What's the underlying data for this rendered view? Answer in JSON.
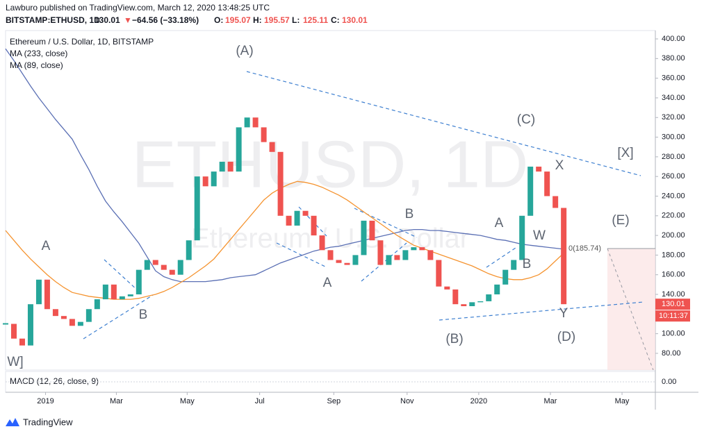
{
  "header": {
    "published": "Lawburo published on TradingView.com, March 12, 2020 13:48:25 UTC",
    "symbol": "BITSTAMP:ETHUSD, 1D",
    "last": "130.01",
    "arrow": "▼",
    "change": "−64.56 (−33.18%)",
    "ohlc": [
      {
        "key": "O:",
        "val": "195.07"
      },
      {
        "key": "H:",
        "val": "195.57"
      },
      {
        "key": "L:",
        "val": "125.11"
      },
      {
        "key": "C:",
        "val": "130.01"
      }
    ]
  },
  "footer": {
    "brand": "TradingView"
  },
  "chart_data": {
    "type": "candlestick",
    "title": "Ethereum / U.S. Dollar, 1D, BITSTAMP",
    "watermark": [
      "ETHUSD, 1D",
      "Ethereum / U.S. Dollar"
    ],
    "up_color": "#26a69a",
    "down_color": "#ef5350",
    "ylim": [
      63,
      408.5
    ],
    "yticks": [
      {
        "value": 80,
        "label": "80.00"
      },
      {
        "value": 100,
        "label": "100.00"
      },
      {
        "value": 120,
        "label": "120.00"
      },
      {
        "value": 140,
        "label": "140.00"
      },
      {
        "value": 160,
        "label": "160.00"
      },
      {
        "value": 180,
        "label": "180.00"
      },
      {
        "value": 200,
        "label": "200.00"
      },
      {
        "value": 220,
        "label": "220.00"
      },
      {
        "value": 240,
        "label": "240.00"
      },
      {
        "value": 260,
        "label": "260.00"
      },
      {
        "value": 280,
        "label": "280.00"
      },
      {
        "value": 300,
        "label": "300.00"
      },
      {
        "value": 320,
        "label": "320.00"
      },
      {
        "value": 340,
        "label": "340.00"
      },
      {
        "value": 360,
        "label": "360.00"
      },
      {
        "value": 380,
        "label": "380.00"
      },
      {
        "value": 400,
        "label": "400.00"
      }
    ],
    "xlim": [
      0,
      78
    ],
    "xticks": [
      {
        "value": 4.8,
        "label": "2019"
      },
      {
        "value": 13.3,
        "label": "Mar"
      },
      {
        "value": 21.8,
        "label": "May"
      },
      {
        "value": 30.5,
        "label": "Jul"
      },
      {
        "value": 39.4,
        "label": "Sep"
      },
      {
        "value": 48.2,
        "label": "Nov"
      },
      {
        "value": 56.8,
        "label": "2020"
      },
      {
        "value": 65.4,
        "label": "Mar"
      },
      {
        "value": 74.0,
        "label": "May"
      }
    ],
    "series": [
      {
        "name": "ETHUSD",
        "values": [
          110,
          95,
          88,
          130,
          155,
          125,
          118,
          115,
          108,
          112,
          125,
          135,
          150,
          135,
          138,
          140,
          165,
          175,
          170,
          165,
          160,
          175,
          195,
          260,
          250,
          265,
          275,
          265,
          310,
          320,
          310,
          295,
          285,
          220,
          210,
          225,
          220,
          200,
          185,
          175,
          172,
          170,
          180,
          215,
          195,
          170,
          180,
          175,
          185,
          188,
          185,
          175,
          148,
          145,
          130,
          128,
          132,
          133,
          140,
          150,
          165,
          175,
          220,
          270,
          265,
          240,
          228,
          130.01
        ]
      },
      {
        "name": "MA (233, close)",
        "color": "#5a6fb4",
        "values": [
          390,
          378,
          365,
          352,
          340,
          329,
          318,
          308,
          298,
          282,
          267,
          250,
          235,
          224,
          214,
          203,
          192,
          178,
          164,
          158,
          155,
          153,
          153,
          153,
          153,
          154,
          155,
          157,
          158,
          159,
          160,
          164,
          168,
          172,
          175,
          178,
          181,
          184,
          186,
          188,
          189,
          191,
          193,
          195,
          197,
          199,
          201,
          203,
          205,
          206,
          206,
          205,
          205,
          204,
          203,
          202,
          201,
          200,
          198,
          196,
          195,
          193,
          191,
          190,
          189,
          188,
          187,
          186
        ]
      },
      {
        "name": "MA (89, close)",
        "color": "#f5932f",
        "values": [
          205,
          195,
          185,
          176,
          168,
          160,
          153,
          147,
          142,
          140,
          138,
          137,
          136,
          135,
          135,
          135,
          136,
          138,
          140,
          143,
          147,
          152,
          157,
          163,
          169,
          176,
          186,
          196,
          206,
          216,
          226,
          236,
          243,
          248,
          252,
          255,
          254,
          252,
          249,
          245,
          241,
          236,
          230,
          224,
          218,
          212,
          206,
          200,
          195,
          190,
          187,
          184,
          181,
          178,
          175,
          172,
          169,
          165,
          161,
          158,
          156,
          155,
          155,
          157,
          160,
          166,
          174,
          182
        ]
      }
    ],
    "last_time": "10:11:37",
    "fib_label": "0(185.74)",
    "annotations": [
      "(A)",
      "(C)",
      "[X]",
      "(E)",
      "A",
      "B",
      "A",
      "B",
      "(B)",
      "A",
      "W",
      "B",
      "X",
      "Y",
      "(D)",
      "W]"
    ],
    "macd": {
      "name": "MACD (12, 26, close, 9)",
      "ylim": [
        -12,
        12
      ],
      "yticks": [
        {
          "value": 0,
          "label": "0.00"
        }
      ]
    }
  }
}
